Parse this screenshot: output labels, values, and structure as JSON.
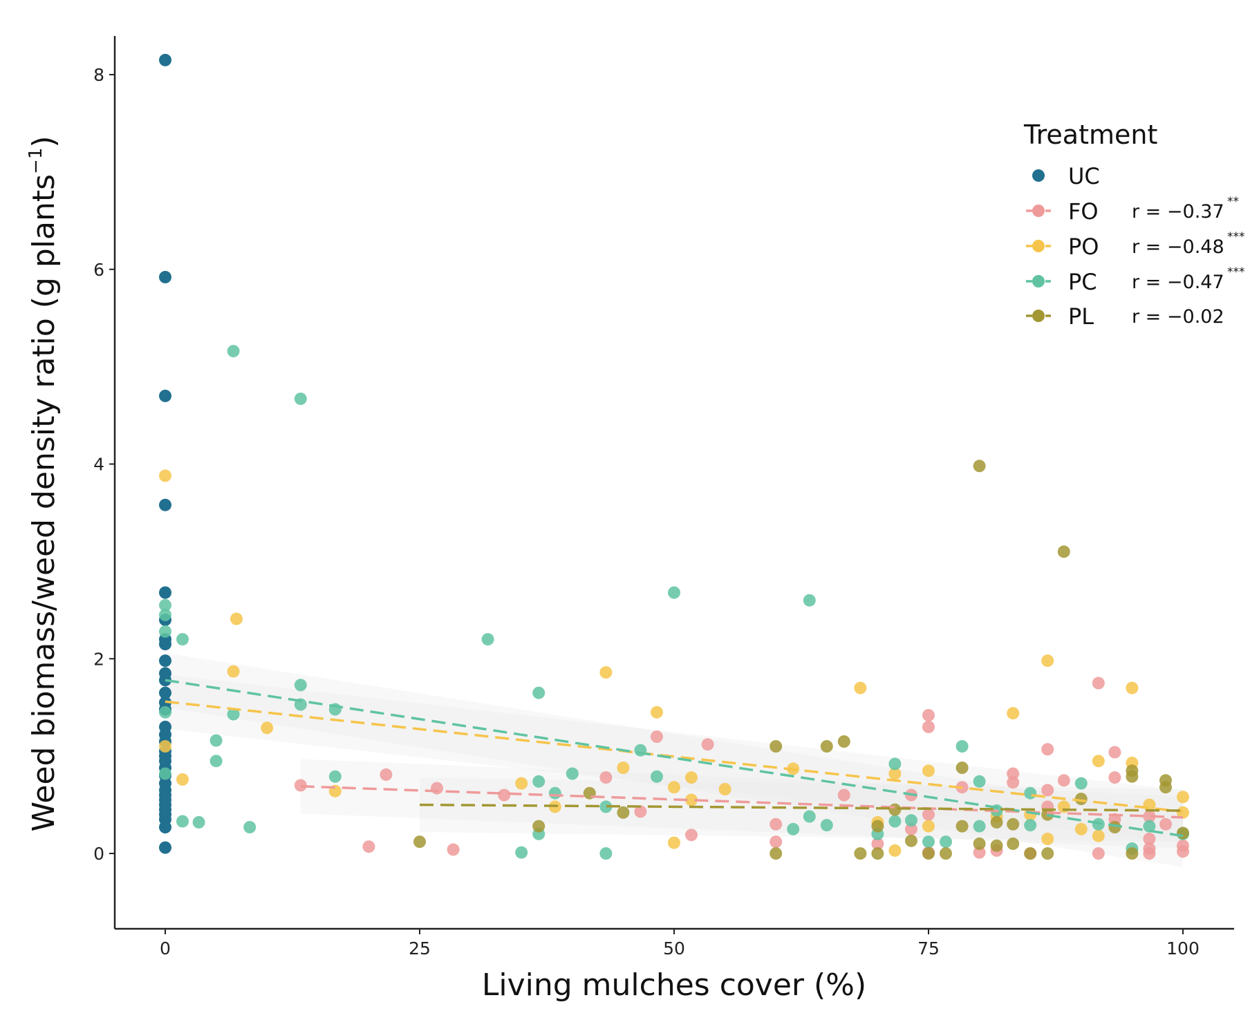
{
  "chart_data": {
    "type": "scatter",
    "title": "",
    "xlabel": "Living mulches cover (%)",
    "ylabel_main": "Weed biomass/weed density ratio (g plants",
    "ylabel_sup": "−1",
    "ylabel_end": ")",
    "xlim": [
      -5,
      105
    ],
    "ylim": [
      -0.75,
      8.55
    ],
    "xticks": [
      0,
      25,
      50,
      75,
      100
    ],
    "yticks": [
      0,
      2,
      4,
      6,
      8
    ],
    "xtick_labels": [
      "0",
      "25",
      "50",
      "75",
      "100"
    ],
    "ytick_labels": [
      "0",
      "2",
      "4",
      "6",
      "8"
    ],
    "grid": false,
    "legend": {
      "title": "Treatment",
      "position": "top-right",
      "entries": [
        {
          "name": "UC",
          "r_text": "",
          "sig": ""
        },
        {
          "name": "FO",
          "r_text": "r = −0.37",
          "sig": "**"
        },
        {
          "name": "PO",
          "r_text": "r = −0.48",
          "sig": "***"
        },
        {
          "name": "PC",
          "r_text": "r = −0.47",
          "sig": "***"
        },
        {
          "name": "PL",
          "r_text": "r = −0.02",
          "sig": ""
        }
      ]
    },
    "series": [
      {
        "name": "UC",
        "color": "#21708f",
        "points": [
          [
            0,
            8.15
          ],
          [
            0,
            5.92
          ],
          [
            0,
            4.7
          ],
          [
            0,
            3.58
          ],
          [
            0,
            2.68
          ],
          [
            0,
            2.4
          ],
          [
            0,
            2.2
          ],
          [
            0,
            2.15
          ],
          [
            0,
            1.98
          ],
          [
            0,
            1.85
          ],
          [
            0,
            1.78
          ],
          [
            0,
            1.65
          ],
          [
            0,
            1.55
          ],
          [
            0,
            1.48
          ],
          [
            0,
            1.3
          ],
          [
            0,
            1.22
          ],
          [
            0,
            1.15
          ],
          [
            0,
            1.05
          ],
          [
            0,
            1.0
          ],
          [
            0,
            0.95
          ],
          [
            0,
            0.88
          ],
          [
            0,
            0.8
          ],
          [
            0,
            0.72
          ],
          [
            0,
            0.65
          ],
          [
            0,
            0.6
          ],
          [
            0,
            0.55
          ],
          [
            0,
            0.5
          ],
          [
            0,
            0.45
          ],
          [
            0,
            0.4
          ],
          [
            0,
            0.35
          ],
          [
            0,
            0.27
          ],
          [
            0,
            0.06
          ]
        ]
      },
      {
        "name": "FO",
        "color": "#ef9a9a",
        "points": [
          [
            13.3,
            0.7
          ],
          [
            20,
            0.07
          ],
          [
            21.7,
            0.81
          ],
          [
            26.7,
            0.67
          ],
          [
            28.3,
            0.04
          ],
          [
            33.3,
            0.6
          ],
          [
            43.3,
            0.78
          ],
          [
            46.7,
            0.43
          ],
          [
            48.3,
            1.2
          ],
          [
            51.7,
            0.19
          ],
          [
            53.3,
            1.12
          ],
          [
            60,
            0.3
          ],
          [
            60,
            0.12
          ],
          [
            66.7,
            0.6
          ],
          [
            70,
            0.1
          ],
          [
            73.3,
            0.25
          ],
          [
            73.3,
            0.6
          ],
          [
            75,
            1.42
          ],
          [
            75,
            1.3
          ],
          [
            75,
            0.4
          ],
          [
            75,
            0.01
          ],
          [
            78.3,
            0.68
          ],
          [
            80,
            0.01
          ],
          [
            81.7,
            0.03
          ],
          [
            83.3,
            0.82
          ],
          [
            83.3,
            0.73
          ],
          [
            85,
            0.0
          ],
          [
            86.7,
            1.07
          ],
          [
            86.7,
            0.65
          ],
          [
            86.7,
            0.48
          ],
          [
            88.3,
            0.75
          ],
          [
            91.7,
            1.75
          ],
          [
            91.7,
            0.0
          ],
          [
            93.3,
            1.04
          ],
          [
            93.3,
            0.78
          ],
          [
            93.3,
            0.35
          ],
          [
            96.7,
            0.38
          ],
          [
            96.7,
            0.15
          ],
          [
            96.7,
            0.05
          ],
          [
            96.7,
            0.0
          ],
          [
            98.3,
            0.3
          ],
          [
            100,
            0.08
          ],
          [
            100,
            0.02
          ]
        ],
        "trend": [
          [
            13.3,
            0.69
          ],
          [
            100,
            0.37
          ]
        ]
      },
      {
        "name": "PO",
        "color": "#f6c44a",
        "points": [
          [
            0,
            3.88
          ],
          [
            0,
            1.1
          ],
          [
            1.7,
            0.76
          ],
          [
            6.7,
            1.87
          ],
          [
            7,
            2.41
          ],
          [
            10,
            1.29
          ],
          [
            16.7,
            0.64
          ],
          [
            35,
            0.72
          ],
          [
            38.3,
            0.48
          ],
          [
            43.3,
            1.86
          ],
          [
            45,
            0.88
          ],
          [
            48.3,
            1.45
          ],
          [
            50,
            0.68
          ],
          [
            50,
            0.11
          ],
          [
            51.7,
            0.78
          ],
          [
            51.7,
            0.55
          ],
          [
            55,
            0.66
          ],
          [
            61.7,
            0.87
          ],
          [
            68.3,
            1.7
          ],
          [
            70,
            0.32
          ],
          [
            71.7,
            0.03
          ],
          [
            71.7,
            0.82
          ],
          [
            75,
            0.28
          ],
          [
            75,
            0.85
          ],
          [
            81.7,
            0.38
          ],
          [
            83.3,
            1.44
          ],
          [
            85,
            0.4
          ],
          [
            86.7,
            1.98
          ],
          [
            86.7,
            0.15
          ],
          [
            88.3,
            0.48
          ],
          [
            90,
            0.25
          ],
          [
            91.7,
            0.95
          ],
          [
            91.7,
            0.18
          ],
          [
            95,
            1.7
          ],
          [
            95,
            0.93
          ],
          [
            96.7,
            0.5
          ],
          [
            100,
            0.58
          ],
          [
            100,
            0.42
          ]
        ],
        "trend": [
          [
            0,
            1.56
          ],
          [
            100,
            0.43
          ]
        ]
      },
      {
        "name": "PC",
        "color": "#5fc3a2",
        "points": [
          [
            0,
            2.55
          ],
          [
            0,
            2.45
          ],
          [
            0,
            2.28
          ],
          [
            0,
            1.45
          ],
          [
            0,
            0.82
          ],
          [
            1.7,
            2.2
          ],
          [
            1.7,
            0.33
          ],
          [
            3.3,
            0.32
          ],
          [
            5,
            1.16
          ],
          [
            5,
            0.95
          ],
          [
            6.7,
            5.16
          ],
          [
            6.7,
            1.43
          ],
          [
            8.3,
            0.27
          ],
          [
            13.3,
            4.67
          ],
          [
            13.3,
            1.73
          ],
          [
            13.3,
            1.53
          ],
          [
            16.7,
            1.48
          ],
          [
            16.7,
            0.79
          ],
          [
            31.7,
            2.2
          ],
          [
            35,
            0.01
          ],
          [
            36.7,
            1.65
          ],
          [
            36.7,
            0.74
          ],
          [
            36.7,
            0.2
          ],
          [
            38.3,
            0.62
          ],
          [
            40,
            0.82
          ],
          [
            43.3,
            0.48
          ],
          [
            43.3,
            0.0
          ],
          [
            46.7,
            1.06
          ],
          [
            48.3,
            0.79
          ],
          [
            50,
            2.68
          ],
          [
            61.7,
            0.25
          ],
          [
            63.3,
            2.6
          ],
          [
            63.3,
            0.38
          ],
          [
            65,
            0.29
          ],
          [
            70,
            0.2
          ],
          [
            71.7,
            0.92
          ],
          [
            71.7,
            0.33
          ],
          [
            73.3,
            0.34
          ],
          [
            75,
            0.12
          ],
          [
            76.7,
            0.12
          ],
          [
            78.3,
            1.1
          ],
          [
            80,
            0.74
          ],
          [
            80,
            0.28
          ],
          [
            81.7,
            0.44
          ],
          [
            85,
            0.62
          ],
          [
            85,
            0.29
          ],
          [
            90,
            0.72
          ],
          [
            91.7,
            0.3
          ],
          [
            95,
            0.05
          ],
          [
            96.7,
            0.28
          ],
          [
            100,
            0.2
          ]
        ],
        "trend": [
          [
            0,
            1.78
          ],
          [
            100,
            0.18
          ]
        ]
      },
      {
        "name": "PL",
        "color": "#a39733",
        "points": [
          [
            25,
            0.12
          ],
          [
            36.7,
            0.28
          ],
          [
            41.7,
            0.62
          ],
          [
            45,
            0.42
          ],
          [
            60,
            1.1
          ],
          [
            60,
            0.0
          ],
          [
            65,
            1.1
          ],
          [
            66.7,
            1.15
          ],
          [
            68.3,
            0.0
          ],
          [
            70,
            0.0
          ],
          [
            70,
            0.28
          ],
          [
            71.7,
            0.45
          ],
          [
            73.3,
            0.13
          ],
          [
            75,
            0.0
          ],
          [
            76.7,
            0.0
          ],
          [
            78.3,
            0.88
          ],
          [
            78.3,
            0.28
          ],
          [
            80,
            3.98
          ],
          [
            80,
            0.1
          ],
          [
            81.7,
            0.08
          ],
          [
            81.7,
            0.32
          ],
          [
            83.3,
            0.3
          ],
          [
            83.3,
            0.1
          ],
          [
            85,
            0.0
          ],
          [
            86.7,
            0.4
          ],
          [
            86.7,
            0.0
          ],
          [
            88.3,
            3.1
          ],
          [
            90,
            0.56
          ],
          [
            93.3,
            0.27
          ],
          [
            95,
            0.85
          ],
          [
            95,
            0.79
          ],
          [
            95,
            0.0
          ],
          [
            98.3,
            0.75
          ],
          [
            98.3,
            0.68
          ],
          [
            100,
            0.21
          ]
        ],
        "trend": [
          [
            25,
            0.5
          ],
          [
            100,
            0.44
          ]
        ]
      }
    ]
  }
}
